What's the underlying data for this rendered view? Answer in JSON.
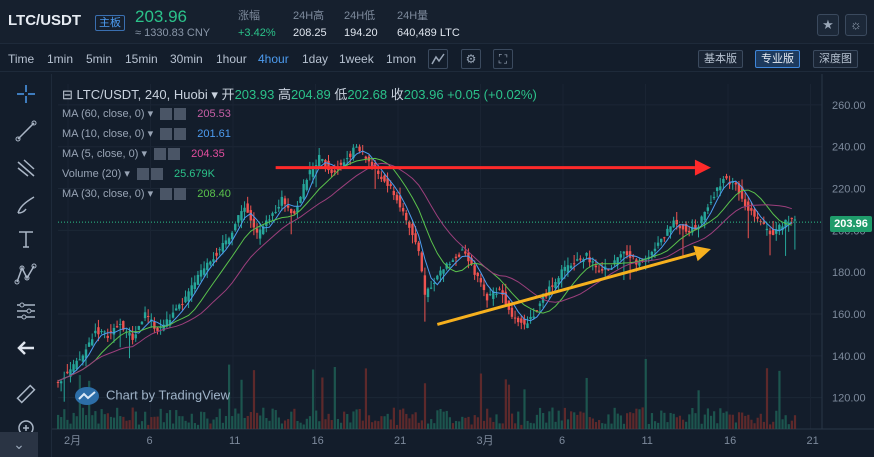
{
  "header": {
    "pair": "LTC/USDT",
    "badge": "主板",
    "price": "203.96",
    "cny": "≈ 1330.83 CNY",
    "stats": [
      {
        "label": "涨幅",
        "value": "+3.42%",
        "up": true
      },
      {
        "label": "24H高",
        "value": "208.25",
        "up": false
      },
      {
        "label": "24H低",
        "value": "194.20",
        "up": false
      },
      {
        "label": "24H量",
        "value": "640,489 LTC",
        "up": false
      }
    ],
    "icons": [
      "star-icon",
      "sun-icon"
    ]
  },
  "toolbar": {
    "intervals": [
      "Time",
      "1min",
      "5min",
      "15min",
      "30min",
      "1hour",
      "4hour",
      "1day",
      "1week",
      "1mon"
    ],
    "active_interval": "4hour",
    "icons": [
      "indicator-icon",
      "settings-icon",
      "fullscreen-icon"
    ],
    "versions": [
      "基本版",
      "专业版",
      "深度图"
    ],
    "active_version": "专业版"
  },
  "left_tools": [
    "crosshair-icon",
    "trend-line-icon",
    "fib-icon",
    "brush-icon",
    "text-icon",
    "pattern-icon",
    "measure-icon",
    "back-arrow-icon",
    "ruler-icon",
    "zoom-icon"
  ],
  "legend": {
    "symbol": "LTC/USDT, 240, Huobi",
    "open_label": "开",
    "open": "203.93",
    "high_label": "高",
    "high": "204.89",
    "low_label": "低",
    "low": "202.68",
    "close_label": "收",
    "close": "203.96",
    "change": "+0.05 (+0.02%)"
  },
  "indicators": [
    {
      "label": "MA (60, close, 0)",
      "value": "205.53",
      "color": "#c65fa6"
    },
    {
      "label": "MA (10, close, 0)",
      "value": "201.61",
      "color": "#4d9cf0"
    },
    {
      "label": "MA (5, close, 0)",
      "value": "204.35",
      "color": "#e24d9e"
    },
    {
      "label": "Volume (20)",
      "value": "25.679K",
      "color": "#2bc28a"
    },
    {
      "label": "MA (30, close, 0)",
      "value": "208.40",
      "color": "#5ac24c"
    }
  ],
  "watermark": "Chart by TradingView",
  "current_price_tag": "203.96",
  "colors": {
    "up": "#26a69a",
    "down": "#ef5350",
    "red_arrow": "#ff2a2a",
    "yellow_arrow": "#f6b01e"
  },
  "chart_data": {
    "type": "candlestick",
    "x_ticks": [
      "2月",
      "6",
      "11",
      "16",
      "21",
      "3月",
      "6",
      "11",
      "16",
      "21"
    ],
    "y_ticks": [
      "120.00",
      "140.00",
      "160.00",
      "180.00",
      "200.00",
      "220.00",
      "240.00",
      "260.00"
    ],
    "ylim": [
      105,
      270
    ],
    "close_path": [
      [
        0,
        128
      ],
      [
        4,
        133
      ],
      [
        8,
        140
      ],
      [
        12,
        152
      ],
      [
        16,
        150
      ],
      [
        20,
        155
      ],
      [
        24,
        148
      ],
      [
        28,
        160
      ],
      [
        32,
        152
      ],
      [
        36,
        158
      ],
      [
        40,
        165
      ],
      [
        44,
        175
      ],
      [
        48,
        185
      ],
      [
        52,
        190
      ],
      [
        56,
        200
      ],
      [
        60,
        212
      ],
      [
        64,
        198
      ],
      [
        68,
        205
      ],
      [
        72,
        215
      ],
      [
        76,
        208
      ],
      [
        80,
        225
      ],
      [
        84,
        235
      ],
      [
        88,
        228
      ],
      [
        92,
        233
      ],
      [
        96,
        240
      ],
      [
        100,
        233
      ],
      [
        104,
        225
      ],
      [
        108,
        218
      ],
      [
        112,
        205
      ],
      [
        116,
        190
      ],
      [
        118,
        170
      ],
      [
        122,
        178
      ],
      [
        126,
        185
      ],
      [
        130,
        190
      ],
      [
        134,
        180
      ],
      [
        138,
        168
      ],
      [
        142,
        172
      ],
      [
        146,
        160
      ],
      [
        150,
        155
      ],
      [
        154,
        162
      ],
      [
        158,
        172
      ],
      [
        162,
        180
      ],
      [
        166,
        185
      ],
      [
        170,
        188
      ],
      [
        174,
        180
      ],
      [
        178,
        183
      ],
      [
        182,
        190
      ],
      [
        186,
        185
      ],
      [
        190,
        188
      ],
      [
        194,
        195
      ],
      [
        198,
        205
      ],
      [
        202,
        200
      ],
      [
        206,
        202
      ],
      [
        210,
        215
      ],
      [
        214,
        225
      ],
      [
        218,
        222
      ],
      [
        222,
        210
      ],
      [
        226,
        203
      ],
      [
        230,
        198
      ],
      [
        234,
        205
      ],
      [
        238,
        204
      ]
    ],
    "close_x_domain": [
      0,
      238
    ],
    "arrows": [
      {
        "color": "red",
        "from": [
          70,
          230
        ],
        "to": [
          210,
          230
        ]
      },
      {
        "color": "yellow",
        "from": [
          122,
          155
        ],
        "to": [
          210,
          191
        ]
      }
    ]
  }
}
